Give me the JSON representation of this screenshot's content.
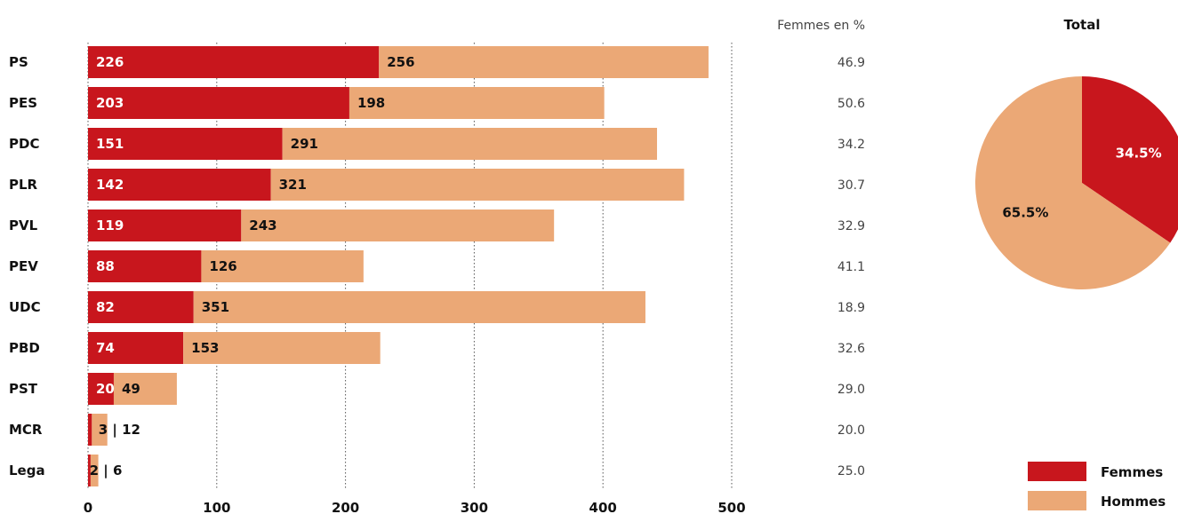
{
  "chart_data": [
    {
      "type": "bar",
      "stacked": true,
      "orientation": "horizontal",
      "categories": [
        "PS",
        "PES",
        "PDC",
        "PLR",
        "PVL",
        "PEV",
        "UDC",
        "PBD",
        "PST",
        "MCR",
        "Lega"
      ],
      "series": [
        {
          "name": "Femmes",
          "color": "#c8161d",
          "values": [
            226,
            203,
            151,
            142,
            119,
            88,
            82,
            74,
            20,
            3,
            2
          ]
        },
        {
          "name": "Hommes",
          "color": "#eba876",
          "values": [
            256,
            198,
            291,
            321,
            243,
            126,
            351,
            153,
            49,
            12,
            6
          ]
        }
      ],
      "small_value_labels": {
        "MCR": "3 | 12",
        "Lega": "2 | 6"
      },
      "xlim": [
        0,
        500
      ],
      "xticks": [
        0,
        100,
        200,
        300,
        400,
        500
      ],
      "grid": true,
      "side_column": {
        "title": "Femmes en %",
        "values": [
          "46.9",
          "50.6",
          "34.2",
          "30.7",
          "32.9",
          "41.1",
          "18.9",
          "32.6",
          "29.0",
          "20.0",
          "25.0"
        ]
      }
    },
    {
      "type": "pie",
      "title": "Total",
      "labels": [
        "Femmes",
        "Hommes"
      ],
      "values": [
        34.5,
        65.5
      ],
      "value_labels": [
        "34.5%",
        "65.5%"
      ],
      "colors": [
        "#c8161d",
        "#eba876"
      ],
      "legend": "bottom-right"
    }
  ]
}
